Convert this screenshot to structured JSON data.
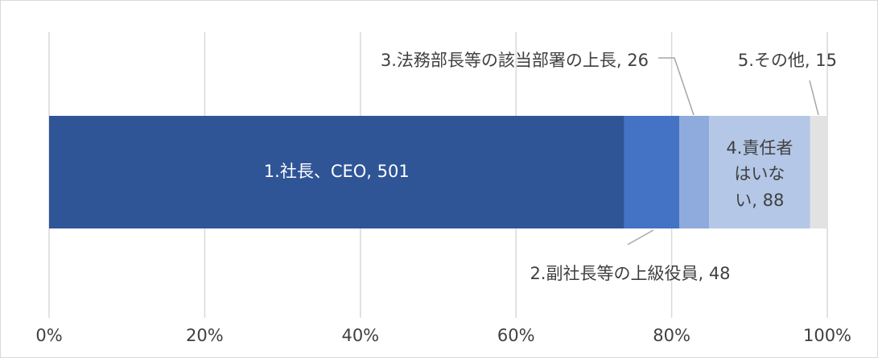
{
  "chart_data": {
    "type": "stacked_bar_100",
    "orientation": "horizontal",
    "categories": [
      null
    ],
    "series": [
      {
        "name": "1.社長、CEO",
        "color": "#2f5597",
        "values": [
          501
        ],
        "value_labels": [
          [
            "1.社長、CEO, 501"
          ]
        ]
      },
      {
        "name": "2.副社長等の上級役員",
        "color": "#4472c4",
        "values": [
          48
        ],
        "value_labels": [
          [
            "2.副社長等の上級役員, 48"
          ]
        ]
      },
      {
        "name": "3.法務部長等の該当部署の上長",
        "color": "#8faadc",
        "values": [
          26
        ],
        "value_labels": [
          [
            "3.法務部長等の該当部署の上長, 26"
          ]
        ]
      },
      {
        "name": "4.責任者はいない",
        "color": "#b4c7e7",
        "values": [
          88
        ],
        "value_labels": [
          [
            "4.責任者",
            "はいな",
            "い, 88"
          ]
        ]
      },
      {
        "name": "5.その他",
        "color": "#e2e2e2",
        "values": [
          15
        ],
        "value_labels": [
          [
            "5.その他, 15"
          ]
        ]
      }
    ],
    "xlim": [
      0,
      100
    ],
    "xticks": [
      {
        "value": 0,
        "label": "0%"
      },
      {
        "value": 20,
        "label": "20%"
      },
      {
        "value": 40,
        "label": "40%"
      },
      {
        "value": 60,
        "label": "60%"
      },
      {
        "value": 80,
        "label": "80%"
      },
      {
        "value": 100,
        "label": "100%"
      }
    ],
    "grid": true
  }
}
